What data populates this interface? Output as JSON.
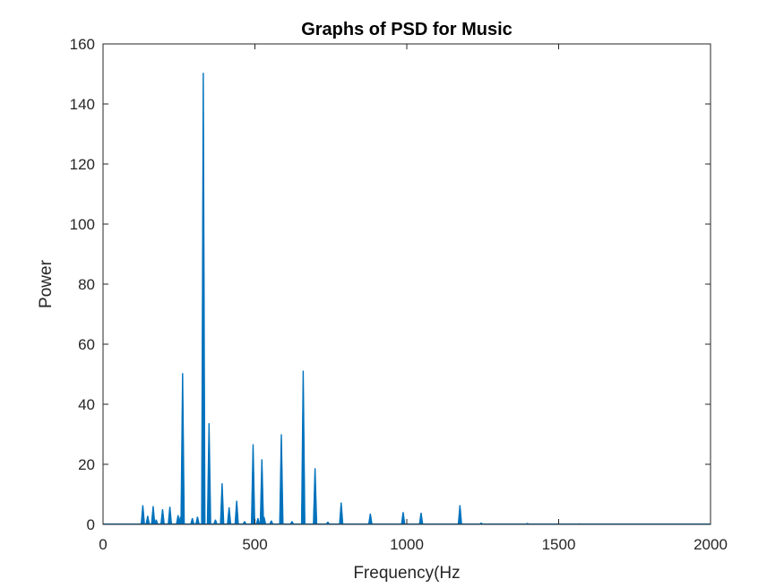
{
  "chart_data": {
    "type": "line",
    "title": "Graphs of PSD for Music",
    "xlabel": "Frequency(Hz",
    "ylabel": "Power",
    "xlim": [
      0,
      2000
    ],
    "ylim": [
      0,
      160
    ],
    "xticks": [
      0,
      500,
      1000,
      1500,
      2000
    ],
    "yticks": [
      0,
      20,
      40,
      60,
      80,
      100,
      120,
      140,
      160
    ],
    "grid": false,
    "line_color": "#0072BD",
    "axis_color": "#262626",
    "series": [
      {
        "peaks": [
          {
            "x": 131,
            "y": 6.3
          },
          {
            "x": 147,
            "y": 2.8
          },
          {
            "x": 165,
            "y": 6.0
          },
          {
            "x": 175,
            "y": 1.5
          },
          {
            "x": 196,
            "y": 5.0
          },
          {
            "x": 220,
            "y": 5.8
          },
          {
            "x": 247,
            "y": 3.0
          },
          {
            "x": 255,
            "y": 2.5
          },
          {
            "x": 262,
            "y": 50.3
          },
          {
            "x": 294,
            "y": 2.0
          },
          {
            "x": 311,
            "y": 2.5
          },
          {
            "x": 330,
            "y": 150.3
          },
          {
            "x": 349,
            "y": 33.6
          },
          {
            "x": 370,
            "y": 1.5
          },
          {
            "x": 392,
            "y": 13.6
          },
          {
            "x": 415,
            "y": 5.6
          },
          {
            "x": 440,
            "y": 7.8
          },
          {
            "x": 466,
            "y": 1.0
          },
          {
            "x": 494,
            "y": 26.6
          },
          {
            "x": 510,
            "y": 2.0
          },
          {
            "x": 523,
            "y": 21.6
          },
          {
            "x": 530,
            "y": 2.4
          },
          {
            "x": 554,
            "y": 1.2
          },
          {
            "x": 587,
            "y": 29.9
          },
          {
            "x": 622,
            "y": 1.0
          },
          {
            "x": 659,
            "y": 51.1
          },
          {
            "x": 698,
            "y": 18.6
          },
          {
            "x": 740,
            "y": 0.8
          },
          {
            "x": 784,
            "y": 7.2
          },
          {
            "x": 880,
            "y": 3.5
          },
          {
            "x": 988,
            "y": 4.0
          },
          {
            "x": 1047,
            "y": 3.8
          },
          {
            "x": 1175,
            "y": 6.3
          },
          {
            "x": 1245,
            "y": 0.5
          },
          {
            "x": 1397,
            "y": 0.4
          },
          {
            "x": 1568,
            "y": 0.3
          }
        ]
      }
    ]
  }
}
